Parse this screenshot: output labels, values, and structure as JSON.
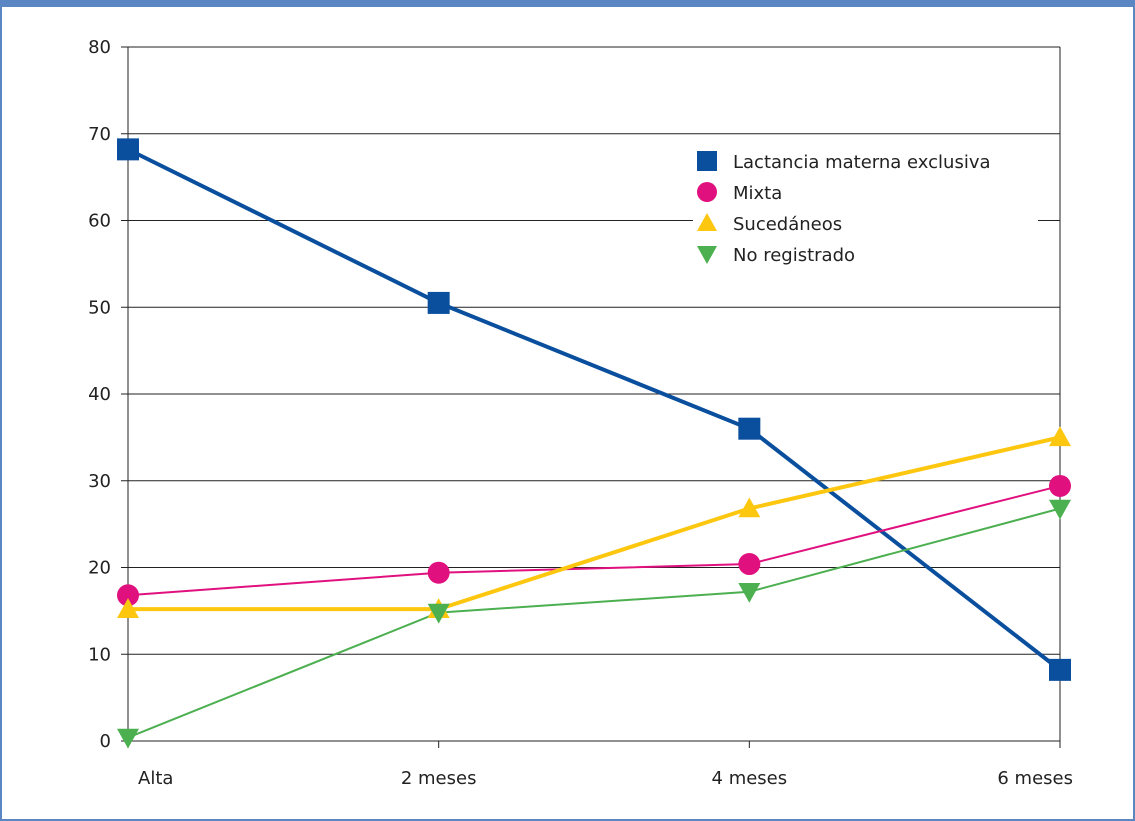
{
  "chart_data": {
    "type": "line",
    "title": "",
    "xlabel": "",
    "ylabel": "",
    "categories": [
      "Alta",
      "2 meses",
      "4 meses",
      "6 meses"
    ],
    "ylim": [
      0,
      80
    ],
    "yticks": [
      0,
      10,
      20,
      30,
      40,
      50,
      60,
      70,
      80
    ],
    "grid": true,
    "legend_position": "top-right",
    "series": [
      {
        "name": "Lactancia materna exclusiva",
        "values": [
          68.2,
          50.5,
          36.0,
          8.2
        ],
        "color": "#0a4f9e",
        "marker": "square",
        "line_width": 4
      },
      {
        "name": "Mixta",
        "values": [
          16.8,
          19.4,
          20.4,
          29.4
        ],
        "color": "#e0117f",
        "marker": "circle",
        "line_width": 2
      },
      {
        "name": "Sucedáneos",
        "values": [
          15.2,
          15.2,
          26.8,
          35.0
        ],
        "color": "#fdc70f",
        "marker": "triangle-up",
        "line_width": 4
      },
      {
        "name": "No registrado",
        "values": [
          0.4,
          14.8,
          17.2,
          26.8
        ],
        "color": "#4caf50",
        "marker": "triangle-down",
        "line_width": 2
      }
    ]
  }
}
